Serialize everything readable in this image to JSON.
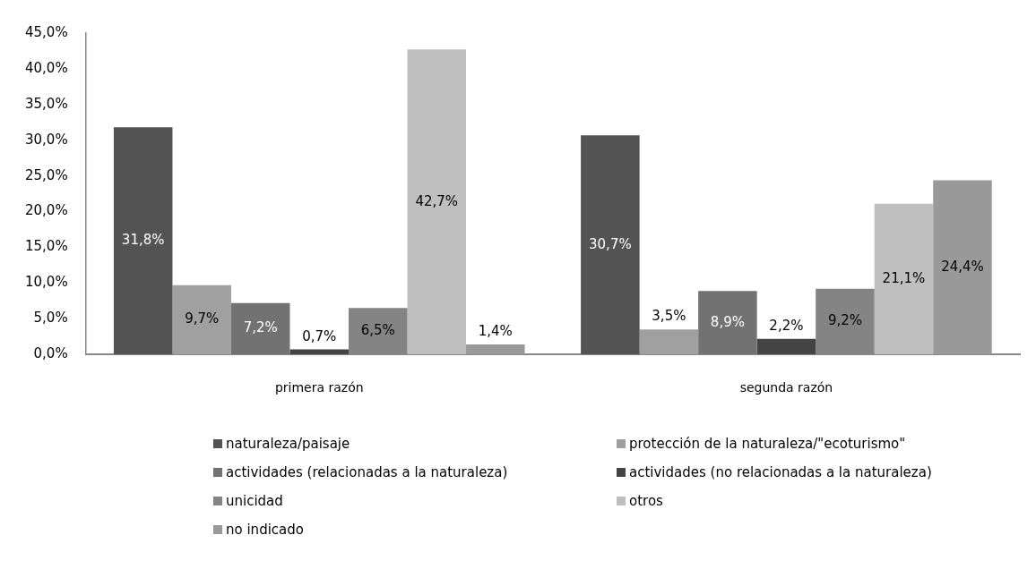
{
  "chart_data": {
    "type": "bar",
    "categories": [
      "primera razón",
      "segunda razón"
    ],
    "series": [
      {
        "name": "naturaleza/paisaje",
        "color": "#535353",
        "values": [
          31.8,
          30.7
        ],
        "value_labels": [
          "31,8%",
          "30,7%"
        ]
      },
      {
        "name": "protección de la naturaleza/\"ecoturismo\"",
        "color": "#a0a0a0",
        "values": [
          9.7,
          3.5
        ],
        "value_labels": [
          "9,7%",
          "3,5%"
        ]
      },
      {
        "name": "actividades (relacionadas a la naturaleza)",
        "color": "#727272",
        "values": [
          7.2,
          8.9
        ],
        "value_labels": [
          "7,2%",
          "8,9%"
        ]
      },
      {
        "name": "actividades (no relacionadas a la naturaleza)",
        "color": "#444444",
        "values": [
          0.7,
          2.2
        ],
        "value_labels": [
          "0,7%",
          "2,2%"
        ]
      },
      {
        "name": "unicidad",
        "color": "#848484",
        "values": [
          6.5,
          9.2
        ],
        "value_labels": [
          "6,5%",
          "9,2%"
        ]
      },
      {
        "name": "otros",
        "color": "#bfbfbf",
        "values": [
          42.7,
          21.1
        ],
        "value_labels": [
          "42,7%",
          "21,1%"
        ]
      },
      {
        "name": "no indicado",
        "color": "#999999",
        "values": [
          1.4,
          24.4
        ],
        "value_labels": [
          "1,4%",
          "24,4%"
        ]
      }
    ],
    "ylim": [
      0,
      45
    ],
    "yticks": [
      {
        "value": 0,
        "label": "0,0%"
      },
      {
        "value": 5,
        "label": "5,0%"
      },
      {
        "value": 10,
        "label": "10,0%"
      },
      {
        "value": 15,
        "label": "15,0%"
      },
      {
        "value": 20,
        "label": "20,0%"
      },
      {
        "value": 25,
        "label": "25,0%"
      },
      {
        "value": 30,
        "label": "30,0%"
      },
      {
        "value": 35,
        "label": "35,0%"
      },
      {
        "value": 40,
        "label": "40,0%"
      },
      {
        "value": 45,
        "label": "45,0%"
      }
    ],
    "grid": false,
    "legend": "bottom"
  }
}
